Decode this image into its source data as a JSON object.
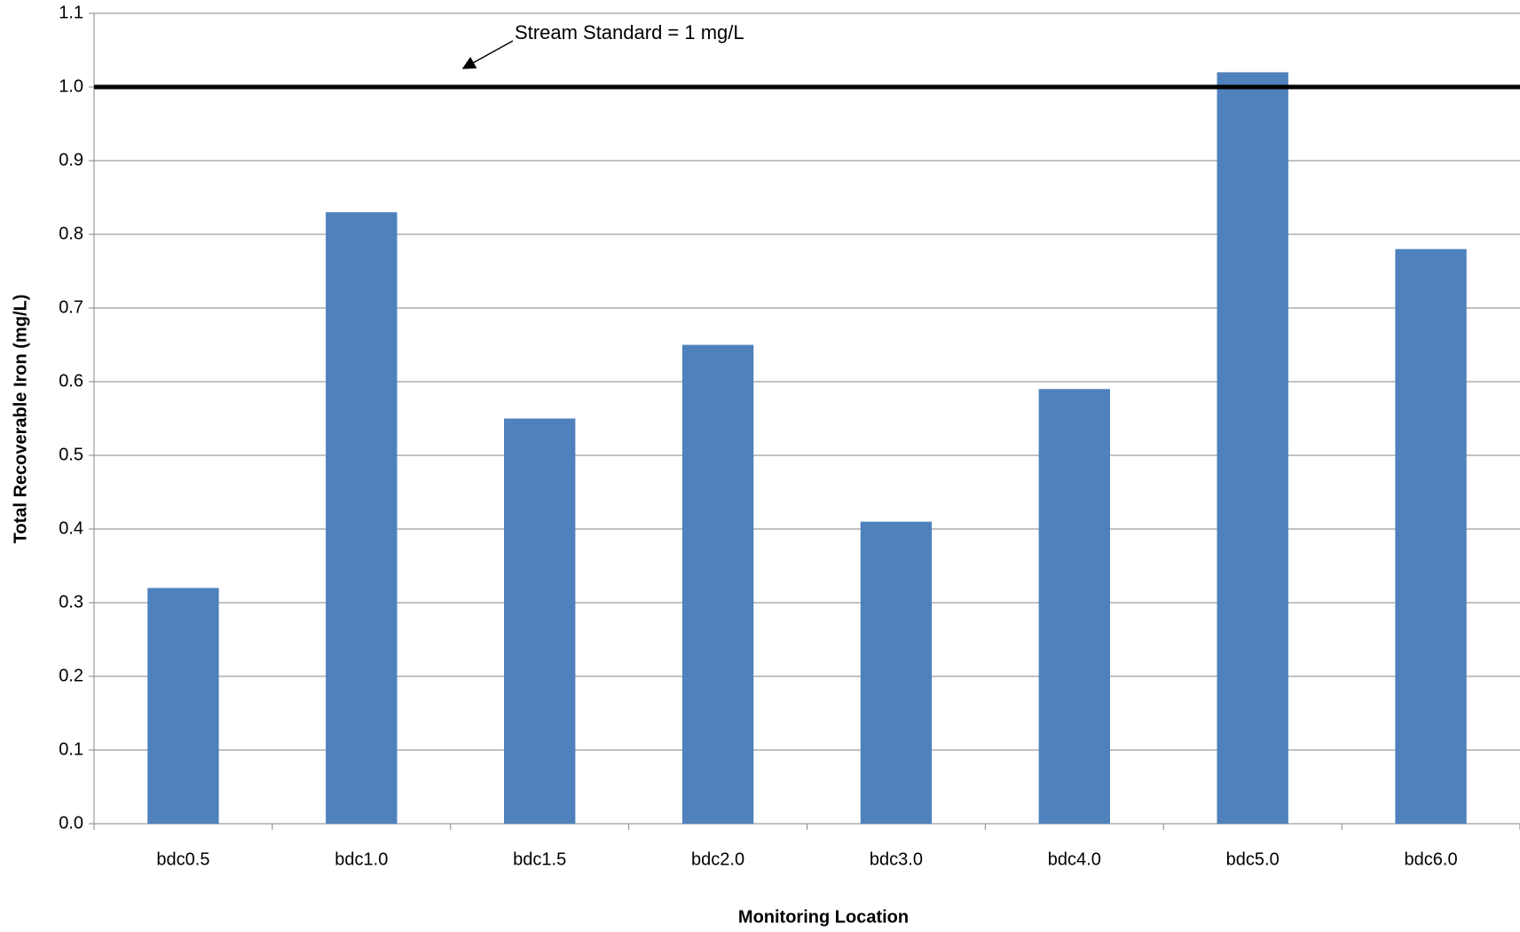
{
  "chart_data": {
    "type": "bar",
    "x_label": "Monitoring Location",
    "y_label": "Total Recoverable Iron (mg/L)",
    "categories": [
      "bdc0.5",
      "bdc1.0",
      "bdc1.5",
      "bdc2.0",
      "bdc3.0",
      "bdc4.0",
      "bdc5.0",
      "bdc6.0"
    ],
    "values": [
      0.32,
      0.83,
      0.55,
      0.65,
      0.41,
      0.59,
      1.02,
      0.78
    ],
    "color": "#4f81bd",
    "ylim": [
      0,
      1.1
    ],
    "yticks": [
      {
        "value": 0,
        "label": "0.0"
      },
      0.1,
      0.2,
      0.3,
      0.4,
      0.5,
      0.6,
      0.7,
      0.8,
      0.9,
      {
        "value": 1,
        "label": "1.0"
      },
      1.1
    ],
    "grid": true,
    "reference_line": {
      "value": 1,
      "label": "Stream Standard = 1 mg/L",
      "color": "#000000"
    }
  }
}
